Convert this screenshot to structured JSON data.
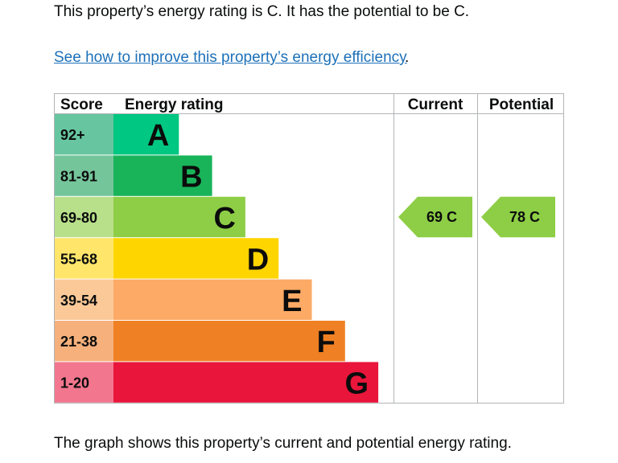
{
  "intro_text": "This property’s energy rating is C. It has the potential to be C.",
  "improve_link_text": "See how to improve this property’s energy efficiency",
  "improve_link_suffix": ".",
  "caption_text": "The graph shows this property’s current and potential energy rating.",
  "chart_data": {
    "type": "bar",
    "title": "",
    "columns": [
      "Score",
      "Energy rating",
      "Current",
      "Potential"
    ],
    "categories": [
      "A",
      "B",
      "C",
      "D",
      "E",
      "F",
      "G"
    ],
    "score_ranges": [
      "92+",
      "81-91",
      "69-80",
      "55-68",
      "39-54",
      "21-38",
      "1-20"
    ],
    "bar_lengths": [
      1,
      2,
      3,
      4,
      5,
      6,
      7
    ],
    "band_colors": [
      "#00c781",
      "#19b459",
      "#8dce46",
      "#ffd500",
      "#fcaa65",
      "#ef8023",
      "#e9153b"
    ],
    "score_colors": [
      "#67c6a0",
      "#75c59b",
      "#b8e08a",
      "#ffe66b",
      "#fbc998",
      "#f5b07c",
      "#f2768e"
    ],
    "current": {
      "score": 69,
      "band": "C",
      "label": "69 C",
      "color": "#8dce46"
    },
    "potential": {
      "score": 78,
      "band": "C",
      "label": "78 C",
      "color": "#8dce46"
    }
  }
}
